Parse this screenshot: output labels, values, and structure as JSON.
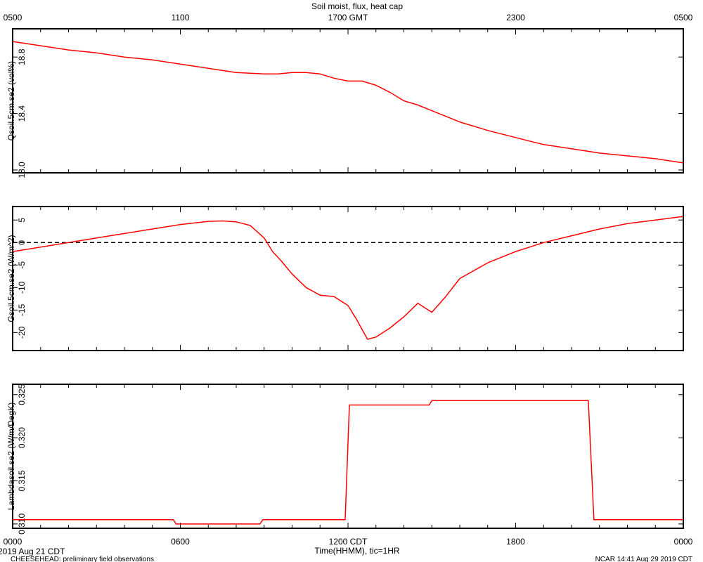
{
  "colors": {
    "series": "#ff0000",
    "axes": "#000000",
    "zero_line": "#000000"
  },
  "figure": {
    "title": "Soil moist, flux, heat cap",
    "top_axis_ticks": [
      "0500",
      "1100",
      "1700 GMT",
      "2300",
      "0500"
    ],
    "bottom_axis_ticks": [
      "0000",
      "0600",
      "1200 CDT",
      "1800",
      "0000"
    ],
    "xlabel": "Time(HHMM), tic=1HR",
    "date_label": "2019 Aug 21 CDT",
    "footer_left": "CHEESEHEAD: preliminary field observations",
    "footer_right": "NCAR 14:41 Aug 29 2019 CDT"
  },
  "chart_data": [
    {
      "type": "line",
      "ylabel": "Qsoil.5cm.se2 (vol%)",
      "xlim": [
        0,
        24
      ],
      "ylim": [
        17.98,
        19.0
      ],
      "yticks": [
        18.0,
        18.4,
        18.8
      ],
      "yticklabels": [
        "18.0",
        "18.4",
        "18.8"
      ],
      "zero_line": false,
      "series": [
        {
          "x": [
            0,
            1,
            2,
            3,
            4,
            5,
            6,
            7,
            8,
            9,
            9.5,
            10,
            10.5,
            11,
            11.5,
            12,
            12.5,
            13,
            13.5,
            14,
            14.5,
            15,
            16,
            17,
            18,
            19,
            20,
            21,
            22,
            23,
            24
          ],
          "values": [
            18.91,
            18.88,
            18.85,
            18.83,
            18.8,
            18.78,
            18.75,
            18.72,
            18.69,
            18.68,
            18.68,
            18.69,
            18.69,
            18.68,
            18.65,
            18.63,
            18.63,
            18.6,
            18.55,
            18.49,
            18.46,
            18.42,
            18.34,
            18.28,
            18.23,
            18.18,
            18.15,
            18.12,
            18.1,
            18.08,
            18.05
          ]
        }
      ]
    },
    {
      "type": "line",
      "ylabel": "Gsoil.5cm.se2 (W/m^2)",
      "xlim": [
        0,
        24
      ],
      "ylim": [
        -24,
        8
      ],
      "yticks": [
        5,
        0,
        -5,
        -10,
        -15,
        -20
      ],
      "yticklabels": [
        "5",
        "0",
        "-5",
        "-10",
        "-15",
        "-20"
      ],
      "zero_line": true,
      "series": [
        {
          "x": [
            0,
            1,
            2,
            3,
            4,
            5,
            6,
            7,
            7.5,
            8,
            8.5,
            9,
            9.3,
            9.6,
            10,
            10.5,
            11,
            11.5,
            12,
            12.3,
            12.7,
            13,
            13.5,
            14,
            14.5,
            15,
            15.5,
            16,
            17,
            18,
            19,
            20,
            21,
            22,
            23,
            24
          ],
          "values": [
            -2,
            -1,
            0,
            1,
            2,
            3,
            4,
            4.7,
            4.8,
            4.6,
            3.8,
            1.0,
            -2.0,
            -4.0,
            -7.0,
            -10.0,
            -11.7,
            -12.0,
            -14.0,
            -17.0,
            -21.5,
            -21.0,
            -19.0,
            -16.5,
            -13.5,
            -15.5,
            -12.0,
            -8.0,
            -4.5,
            -2.0,
            0.0,
            1.5,
            3.0,
            4.2,
            5.0,
            5.8
          ]
        }
      ]
    },
    {
      "type": "line",
      "ylabel": "Lambdasoil.se2 (W/m/DegK)",
      "xlim": [
        0,
        24
      ],
      "ylim": [
        0.3095,
        0.3262
      ],
      "yticks": [
        0.31,
        0.315,
        0.32,
        0.325
      ],
      "yticklabels": [
        "0.310",
        "0.315",
        "0.320",
        "0.325"
      ],
      "zero_line": false,
      "series": [
        {
          "x": [
            0,
            5.75,
            5.85,
            8.85,
            8.95,
            11.9,
            12.05,
            14.9,
            15.0,
            20.6,
            20.8,
            24
          ],
          "values": [
            0.3105,
            0.3105,
            0.31,
            0.31,
            0.3105,
            0.3105,
            0.3238,
            0.3238,
            0.3243,
            0.3243,
            0.3105,
            0.3105
          ]
        }
      ]
    }
  ]
}
